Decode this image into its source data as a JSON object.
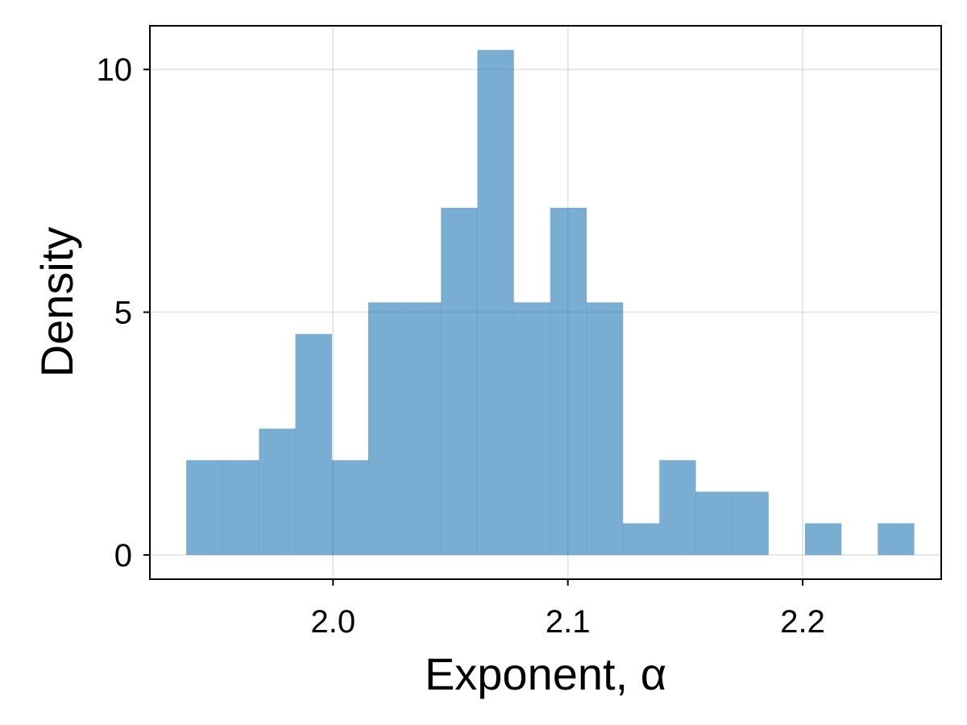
{
  "chart_data": {
    "type": "bar",
    "subtype": "histogram",
    "xlabel": "Exponent, α",
    "ylabel": "Density",
    "xlim": [
      1.922,
      2.259
    ],
    "ylim": [
      -0.5,
      10.9
    ],
    "xticks": [
      2.0,
      2.1,
      2.2
    ],
    "xtick_labels": [
      "2.0",
      "2.1",
      "2.2"
    ],
    "yticks": [
      0,
      5,
      10
    ],
    "ytick_labels": [
      "0",
      "5",
      "10"
    ],
    "grid": true,
    "legend": "none",
    "bar_color": "#1f77b4",
    "bar_opacity": 0.6,
    "bins": [
      {
        "x0": 1.9375,
        "x1": 1.953,
        "value": 1.95
      },
      {
        "x0": 1.953,
        "x1": 1.9685,
        "value": 1.95
      },
      {
        "x0": 1.9685,
        "x1": 1.984,
        "value": 2.6
      },
      {
        "x0": 1.984,
        "x1": 1.9995,
        "value": 4.55
      },
      {
        "x0": 1.9995,
        "x1": 2.015,
        "value": 1.95
      },
      {
        "x0": 2.015,
        "x1": 2.0305,
        "value": 5.2
      },
      {
        "x0": 2.0305,
        "x1": 2.046,
        "value": 5.2
      },
      {
        "x0": 2.046,
        "x1": 2.0615,
        "value": 7.15
      },
      {
        "x0": 2.0615,
        "x1": 2.077,
        "value": 10.4
      },
      {
        "x0": 2.077,
        "x1": 2.0925,
        "value": 5.2
      },
      {
        "x0": 2.0925,
        "x1": 2.108,
        "value": 7.15
      },
      {
        "x0": 2.108,
        "x1": 2.1235,
        "value": 5.2
      },
      {
        "x0": 2.1235,
        "x1": 2.139,
        "value": 0.65
      },
      {
        "x0": 2.139,
        "x1": 2.1545,
        "value": 1.95
      },
      {
        "x0": 2.1545,
        "x1": 2.17,
        "value": 1.3
      },
      {
        "x0": 2.17,
        "x1": 2.1855,
        "value": 1.3
      },
      {
        "x0": 2.1855,
        "x1": 2.201,
        "value": 0
      },
      {
        "x0": 2.201,
        "x1": 2.2165,
        "value": 0.65
      },
      {
        "x0": 2.2165,
        "x1": 2.232,
        "value": 0
      },
      {
        "x0": 2.232,
        "x1": 2.2475,
        "value": 0.65
      }
    ]
  }
}
